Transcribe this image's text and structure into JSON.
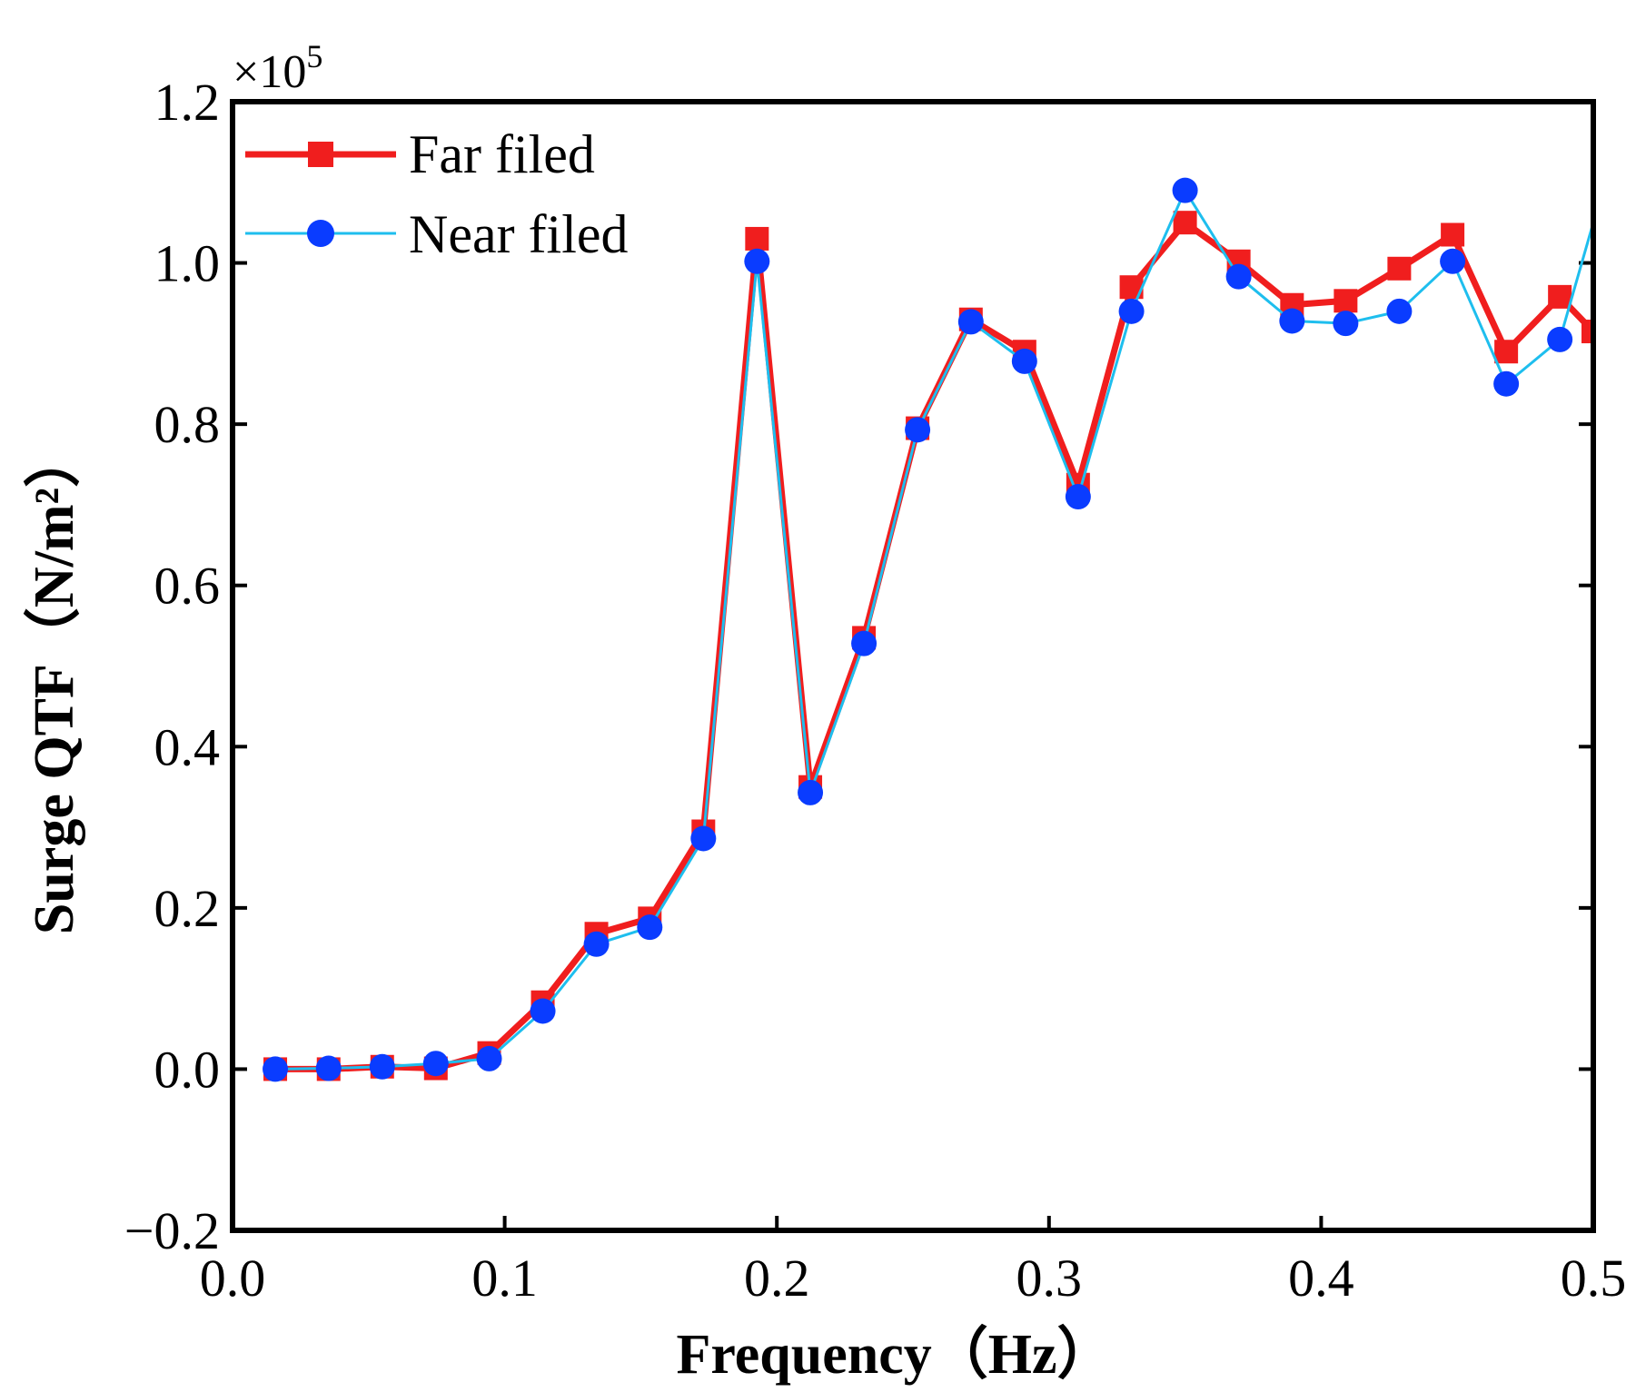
{
  "chart_data": {
    "type": "line",
    "title": "",
    "xlabel": "Frequency（Hz）",
    "ylabel": "Surge QTF（N/m²）",
    "y_multiplier": "×10",
    "y_multiplier_exp": "5",
    "xlim": [
      0.0,
      0.5
    ],
    "ylim": [
      -0.2,
      1.2
    ],
    "x_ticks": [
      0.0,
      0.1,
      0.2,
      0.3,
      0.4,
      0.5
    ],
    "x_tick_labels": [
      "0.0",
      "0.1",
      "0.2",
      "0.3",
      "0.4",
      "0.5"
    ],
    "y_ticks": [
      -0.2,
      0.0,
      0.2,
      0.4,
      0.6,
      0.8,
      1.0,
      1.2
    ],
    "y_tick_labels": [
      "−0.2",
      "0.0",
      "0.2",
      "0.4",
      "0.6",
      "0.8",
      "1.0",
      "1.2"
    ],
    "grid": false,
    "legend_position": "top-left",
    "series": [
      {
        "name": "Far filed",
        "color": "#f01e1e",
        "marker": "square",
        "x": [
          0.0157,
          0.0353,
          0.055,
          0.0747,
          0.0943,
          0.114,
          0.1337,
          0.1533,
          0.173,
          0.1927,
          0.2123,
          0.232,
          0.2517,
          0.2713,
          0.291,
          0.3107,
          0.3303,
          0.35,
          0.3697,
          0.3893,
          0.409,
          0.4287,
          0.4483,
          0.468,
          0.4877,
          0.5
        ],
        "values": [
          0.0,
          0.0,
          0.003,
          0.001,
          0.02,
          0.083,
          0.168,
          0.187,
          0.295,
          1.03,
          0.35,
          0.535,
          0.795,
          0.93,
          0.89,
          0.725,
          0.97,
          1.05,
          1.002,
          0.948,
          0.953,
          0.993,
          1.035,
          0.89,
          0.958,
          0.915
        ]
      },
      {
        "name": "Near filed",
        "color": "#1ebeee",
        "marker_color": "#0a3cff",
        "marker": "circle",
        "x": [
          0.0157,
          0.0353,
          0.055,
          0.0747,
          0.0943,
          0.114,
          0.1337,
          0.1533,
          0.173,
          0.1927,
          0.2123,
          0.232,
          0.2517,
          0.2713,
          0.291,
          0.3107,
          0.3303,
          0.35,
          0.3697,
          0.3893,
          0.409,
          0.4287,
          0.4483,
          0.468,
          0.4877,
          0.5
        ],
        "values": [
          0.0,
          0.001,
          0.003,
          0.007,
          0.013,
          0.072,
          0.155,
          0.176,
          0.286,
          1.002,
          0.343,
          0.528,
          0.793,
          0.927,
          0.878,
          0.71,
          0.94,
          1.09,
          0.983,
          0.928,
          0.925,
          0.94,
          1.002,
          0.85,
          0.905,
          1.05
        ]
      }
    ]
  }
}
